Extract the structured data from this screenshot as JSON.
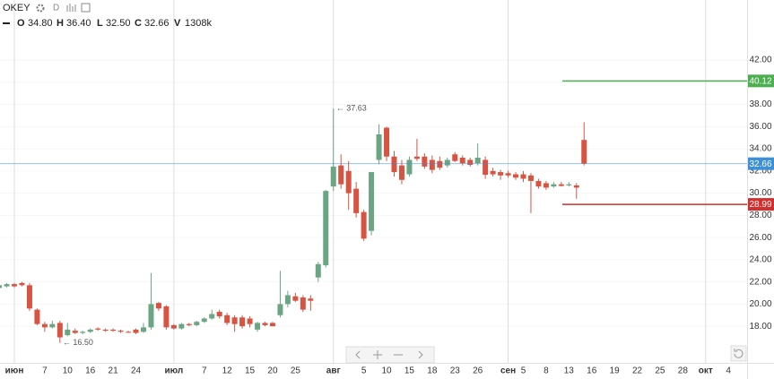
{
  "header": {
    "symbol": "OKEY",
    "interval": "D",
    "legend": [
      {
        "key": "O",
        "value": "34.80"
      },
      {
        "key": "H",
        "value": "36.40"
      },
      {
        "key": "L",
        "value": "32.50"
      },
      {
        "key": "C",
        "value": "32.66"
      },
      {
        "key": "V",
        "value": "1308k"
      }
    ]
  },
  "chart_data": {
    "type": "candlestick",
    "categories": [
      null,
      null,
      "июн",
      null,
      null,
      null,
      "7",
      null,
      null,
      "10",
      null,
      null,
      "16",
      null,
      null,
      "21",
      null,
      null,
      "24",
      null,
      null,
      null,
      null,
      "июл",
      null,
      null,
      null,
      "7",
      null,
      null,
      "12",
      null,
      null,
      "15",
      null,
      null,
      "20",
      null,
      null,
      "25",
      null,
      null,
      null,
      null,
      "авг",
      null,
      null,
      null,
      "5",
      null,
      null,
      "10",
      null,
      null,
      "15",
      null,
      null,
      "18",
      null,
      null,
      "23",
      null,
      null,
      "26",
      null,
      null,
      null,
      "сен",
      null,
      "5",
      null,
      null,
      "8",
      null,
      null,
      "13",
      null,
      null,
      "16",
      null,
      null,
      "19",
      null,
      null,
      "22",
      null,
      null,
      "25",
      null,
      null,
      "28",
      null,
      null,
      "окт",
      null,
      null,
      "4",
      null
    ],
    "open": [
      21.45,
      21.6,
      21.8,
      21.9,
      21.7,
      19.5,
      18.2,
      17.9,
      18.3,
      17.2,
      17.6,
      17.4,
      17.5,
      17.8,
      17.7,
      17.7,
      17.6,
      17.5,
      17.7,
      17.5,
      17.9,
      20.1,
      19.8,
      18.1,
      17.8,
      18.2,
      18.1,
      18.4,
      18.7,
      19.3,
      19.0,
      18.8,
      18.8,
      18.7,
      17.7,
      18.3,
      18.3,
      19.0,
      20.0,
      20.7,
      20.6,
      20.5,
      22.4,
      23.5,
      30.6,
      32.5,
      32.0,
      30.4,
      28.3,
      26.6,
      33.0,
      35.9,
      33.3,
      32.5,
      31.7,
      33.3,
      33.3,
      33.0,
      32.9,
      32.5,
      33.5,
      33.2,
      33.0,
      32.7,
      33.0,
      32.0,
      31.9,
      31.8,
      31.7,
      31.7,
      31.6,
      31.1,
      30.9,
      30.6,
      30.8,
      30.7,
      30.7,
      34.8,
      null,
      null,
      null,
      null,
      null,
      null,
      null,
      null,
      null,
      null,
      null,
      null,
      null,
      null,
      null,
      null,
      null,
      null,
      null,
      null
    ],
    "high": [
      22.3,
      21.9,
      21.9,
      22.0,
      21.9,
      19.6,
      18.4,
      18.5,
      18.5,
      18.3,
      17.8,
      17.6,
      17.8,
      17.9,
      17.8,
      17.8,
      17.7,
      17.6,
      17.8,
      18.3,
      22.8,
      20.2,
      19.9,
      18.2,
      18.3,
      18.3,
      18.5,
      18.8,
      19.5,
      19.5,
      19.2,
      19.0,
      19.0,
      18.9,
      18.4,
      18.4,
      18.4,
      23.0,
      21.2,
      21.0,
      20.8,
      20.8,
      23.8,
      30.3,
      37.63,
      33.5,
      32.9,
      31.0,
      28.5,
      31.9,
      36.2,
      36.0,
      33.8,
      33.0,
      33.3,
      34.9,
      33.6,
      33.4,
      33.3,
      33.2,
      33.7,
      33.4,
      33.2,
      34.5,
      33.3,
      32.3,
      32.1,
      32.0,
      31.9,
      32.0,
      31.8,
      31.3,
      31.1,
      31.0,
      31.0,
      31.0,
      30.9,
      36.4,
      null,
      null,
      null,
      null,
      null,
      null,
      null,
      null,
      null,
      null,
      null,
      null,
      null,
      null,
      null,
      null,
      null,
      null,
      null,
      null
    ],
    "low": [
      21.4,
      21.5,
      21.5,
      21.6,
      19.4,
      18.1,
      17.5,
      17.8,
      16.5,
      17.1,
      17.3,
      17.3,
      17.4,
      17.6,
      17.5,
      17.5,
      17.4,
      17.4,
      17.3,
      17.4,
      17.7,
      19.4,
      17.7,
      17.7,
      17.7,
      18.0,
      18.0,
      18.3,
      18.6,
      18.7,
      18.1,
      17.5,
      17.8,
      17.9,
      17.5,
      18.0,
      18.0,
      18.8,
      19.7,
      20.2,
      19.3,
      19.4,
      22.0,
      23.3,
      30.2,
      30.4,
      28.5,
      27.8,
      25.7,
      26.2,
      32.6,
      32.9,
      31.5,
      30.8,
      31.5,
      32.9,
      32.2,
      31.8,
      32.1,
      32.3,
      32.8,
      32.5,
      32.4,
      32.5,
      31.3,
      31.5,
      31.2,
      31.4,
      31.2,
      31.0,
      28.2,
      30.4,
      30.3,
      30.5,
      30.6,
      30.6,
      29.5,
      32.5,
      null,
      null,
      null,
      null,
      null,
      null,
      null,
      null,
      null,
      null,
      null,
      null,
      null,
      null,
      null,
      null,
      null,
      null,
      null,
      null
    ],
    "close": [
      21.7,
      21.8,
      21.6,
      21.7,
      19.6,
      18.2,
      17.9,
      18.2,
      17.0,
      17.7,
      17.4,
      17.5,
      17.7,
      17.7,
      17.6,
      17.6,
      17.5,
      17.45,
      17.4,
      17.9,
      20.0,
      19.6,
      17.9,
      17.8,
      18.2,
      18.1,
      18.4,
      18.7,
      19.1,
      18.9,
      18.3,
      18.2,
      18.0,
      18.2,
      18.3,
      18.1,
      18.0,
      20.0,
      20.8,
      20.3,
      19.5,
      20.3,
      23.6,
      30.2,
      32.4,
      30.8,
      30.0,
      28.2,
      25.9,
      31.9,
      35.3,
      33.3,
      31.9,
      31.2,
      33.0,
      33.1,
      32.4,
      32.1,
      32.3,
      33.0,
      32.9,
      32.7,
      32.55,
      33.2,
      31.66,
      31.7,
      31.6,
      31.6,
      31.4,
      31.3,
      31.1,
      30.6,
      30.5,
      30.8,
      30.65,
      30.8,
      30.5,
      32.66,
      null,
      null,
      null,
      null,
      null,
      null,
      null,
      null,
      null,
      null,
      null,
      null,
      null,
      null,
      null,
      null,
      null,
      null,
      null,
      null
    ],
    "up_color": "#6ba583",
    "down_color": "#d75442",
    "ylim": [
      14.7,
      45.8
    ],
    "yticks": [
      {
        "value": 18,
        "label": "18.00"
      },
      {
        "value": 20,
        "label": "20.00"
      },
      {
        "value": 22,
        "label": "22.00"
      },
      {
        "value": 24,
        "label": "24.00"
      },
      {
        "value": 26,
        "label": "26.00"
      },
      {
        "value": 28,
        "label": "28.00"
      },
      {
        "value": 30,
        "label": "30.00"
      },
      {
        "value": 32,
        "label": "32.00"
      },
      {
        "value": 34,
        "label": "34.00"
      },
      {
        "value": 36,
        "label": "36.00"
      },
      {
        "value": 38,
        "label": "38.00"
      },
      {
        "value": 40,
        "label": "40.00"
      },
      {
        "value": 42,
        "label": "42.00"
      }
    ],
    "levels": [
      {
        "value": 40.12,
        "color": "#4caf50"
      },
      {
        "value": 32.66,
        "color": "#3d8fd6"
      },
      {
        "value": 28.99,
        "color": "#d32f2f"
      }
    ],
    "annotations": [
      {
        "label": "← 37.63",
        "value": 37.63
      },
      {
        "label": "← 16.50",
        "value": 16.5
      }
    ]
  }
}
